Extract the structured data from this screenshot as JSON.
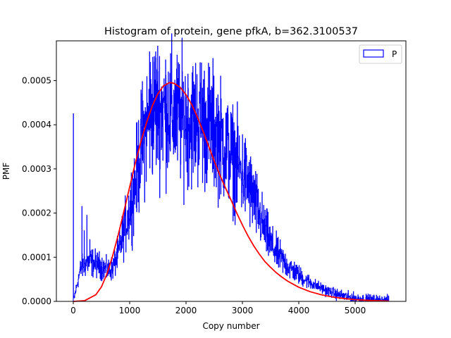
{
  "chart_data": {
    "type": "line",
    "title": "Histogram of protein, gene pfkA, b=362.3100537",
    "xlabel": "Copy number",
    "ylabel": "PMF",
    "xlim": [
      -300,
      5900
    ],
    "ylim": [
      0,
      0.00059
    ],
    "xticks": [
      0,
      1000,
      2000,
      3000,
      4000,
      5000
    ],
    "xtick_labels": [
      "0",
      "1000",
      "2000",
      "3000",
      "4000",
      "5000"
    ],
    "yticks": [
      0,
      0.0001,
      0.0002,
      0.0003,
      0.0004,
      0.0005
    ],
    "ytick_labels": [
      "0.0000",
      "0.0001",
      "0.0002",
      "0.0003",
      "0.0004",
      "0.0005"
    ],
    "legend": {
      "position": "top-right",
      "entries": [
        {
          "label": "P",
          "color": "#0000ff",
          "style": "box"
        }
      ]
    },
    "series": [
      {
        "kind": "histogram-step",
        "color": "#0000ff",
        "note_label": "P",
        "spikes": [
          {
            "x": 0,
            "y": 0.000425
          },
          {
            "x": 150,
            "y": 0.000215
          },
          {
            "x": 190,
            "y": 0.00016
          },
          {
            "x": 240,
            "y": 0.000195
          },
          {
            "x": 290,
            "y": 0.00014
          },
          {
            "x": 1350,
            "y": 0.000565
          },
          {
            "x": 1460,
            "y": 0.000565
          },
          {
            "x": 2270,
            "y": 0.00054
          }
        ],
        "envelope": {
          "x": [
            0,
            120,
            200,
            300,
            400,
            500,
            600,
            700,
            800,
            900,
            1000,
            1100,
            1200,
            1300,
            1400,
            1500,
            1600,
            1700,
            1800,
            1900,
            2000,
            2100,
            2200,
            2300,
            2400,
            2500,
            2600,
            2700,
            2800,
            2900,
            3000,
            3100,
            3200,
            3300,
            3400,
            3500,
            3600,
            3700,
            3800,
            3900,
            4000,
            4100,
            4200,
            4300,
            4400,
            4500,
            4600,
            4700,
            4800,
            4900,
            5000,
            5100,
            5200,
            5300,
            5400,
            5500,
            5600
          ],
          "y": [
            0.0,
            7e-05,
            8.5e-05,
            9e-05,
            8.5e-05,
            8e-05,
            7e-05,
            7.5e-05,
            0.00011,
            0.00016,
            0.00021,
            0.00027,
            0.00035,
            0.0004,
            0.00043,
            0.00044,
            0.000435,
            0.00043,
            0.00042,
            0.000415,
            0.00041,
            0.00041,
            0.00041,
            0.000405,
            0.0004,
            0.00039,
            0.00037,
            0.00035,
            0.00033,
            0.00031,
            0.00029,
            0.000265,
            0.00023,
            0.000195,
            0.00016,
            0.00013,
            0.00011,
            9.5e-05,
            8e-05,
            7e-05,
            6e-05,
            5e-05,
            4.3e-05,
            3.6e-05,
            3e-05,
            2.4e-05,
            1.9e-05,
            1.5e-05,
            1.2e-05,
            9e-06,
            7e-06,
            5e-06,
            4e-06,
            3e-06,
            2e-06,
            1.5e-06,
            1e-06
          ]
        }
      },
      {
        "kind": "fit-curve",
        "color": "#ff0000",
        "x": [
          0,
          200,
          400,
          500,
          600,
          700,
          800,
          900,
          1000,
          1100,
          1200,
          1300,
          1400,
          1500,
          1600,
          1700,
          1750,
          1800,
          1900,
          2000,
          2100,
          2200,
          2300,
          2400,
          2500,
          2600,
          2700,
          2800,
          2900,
          3000,
          3100,
          3200,
          3300,
          3400,
          3500,
          3600,
          3700,
          3800,
          3900,
          4000,
          4200,
          4400,
          4600,
          4800,
          5000,
          5200,
          5400,
          5600
        ],
        "y": [
          0.0,
          1.5e-06,
          1.5e-05,
          3.3e-05,
          6.3e-05,
          0.000104,
          0.000152,
          0.000205,
          0.000259,
          0.000313,
          0.000362,
          0.000405,
          0.000442,
          0.00047,
          0.000488,
          0.000495,
          0.000495,
          0.000493,
          0.000484,
          0.000468,
          0.000446,
          0.000418,
          0.000386,
          0.000352,
          0.000318,
          0.000286,
          0.000257,
          0.000229,
          0.0002,
          0.000173,
          0.000148,
          0.000126,
          0.000107,
          9e-05,
          7.7e-05,
          6.5e-05,
          5.5e-05,
          4.6e-05,
          3.9e-05,
          3.2e-05,
          2.2e-05,
          1.5e-05,
          1e-05,
          6.5e-06,
          4e-06,
          2.5e-06,
          1.5e-06,
          8e-07
        ]
      }
    ]
  }
}
